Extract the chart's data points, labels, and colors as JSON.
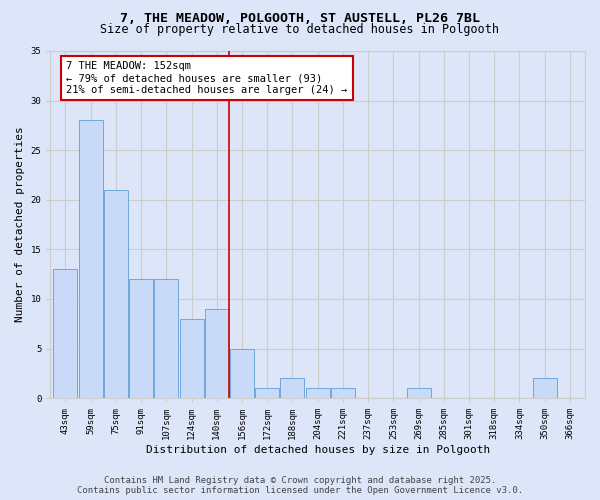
{
  "title_line1": "7, THE MEADOW, POLGOOTH, ST AUSTELL, PL26 7BL",
  "title_line2": "Size of property relative to detached houses in Polgooth",
  "xlabel": "Distribution of detached houses by size in Polgooth",
  "ylabel": "Number of detached properties",
  "bin_labels": [
    "43sqm",
    "59sqm",
    "75sqm",
    "91sqm",
    "107sqm",
    "124sqm",
    "140sqm",
    "156sqm",
    "172sqm",
    "188sqm",
    "204sqm",
    "221sqm",
    "237sqm",
    "253sqm",
    "269sqm",
    "285sqm",
    "301sqm",
    "318sqm",
    "334sqm",
    "350sqm",
    "366sqm"
  ],
  "bar_values": [
    13,
    28,
    21,
    12,
    12,
    8,
    9,
    5,
    1,
    2,
    1,
    1,
    0,
    0,
    1,
    0,
    0,
    0,
    0,
    2,
    0
  ],
  "bar_color": "#c9daf8",
  "bar_edge_color": "#6fa8dc",
  "vline_color": "#cc0000",
  "annotation_text": "7 THE MEADOW: 152sqm\n← 79% of detached houses are smaller (93)\n21% of semi-detached houses are larger (24) →",
  "annotation_box_color": "#ffffff",
  "annotation_box_edge": "#cc0000",
  "ylim": [
    0,
    35
  ],
  "yticks": [
    0,
    5,
    10,
    15,
    20,
    25,
    30,
    35
  ],
  "grid_color": "#cccccc",
  "background_color": "#dce6f8",
  "footer_line1": "Contains HM Land Registry data © Crown copyright and database right 2025.",
  "footer_line2": "Contains public sector information licensed under the Open Government Licence v3.0.",
  "title_fontsize": 9.5,
  "subtitle_fontsize": 8.5,
  "axis_label_fontsize": 8,
  "tick_fontsize": 6.5,
  "annotation_fontsize": 7.5,
  "footer_fontsize": 6.5
}
